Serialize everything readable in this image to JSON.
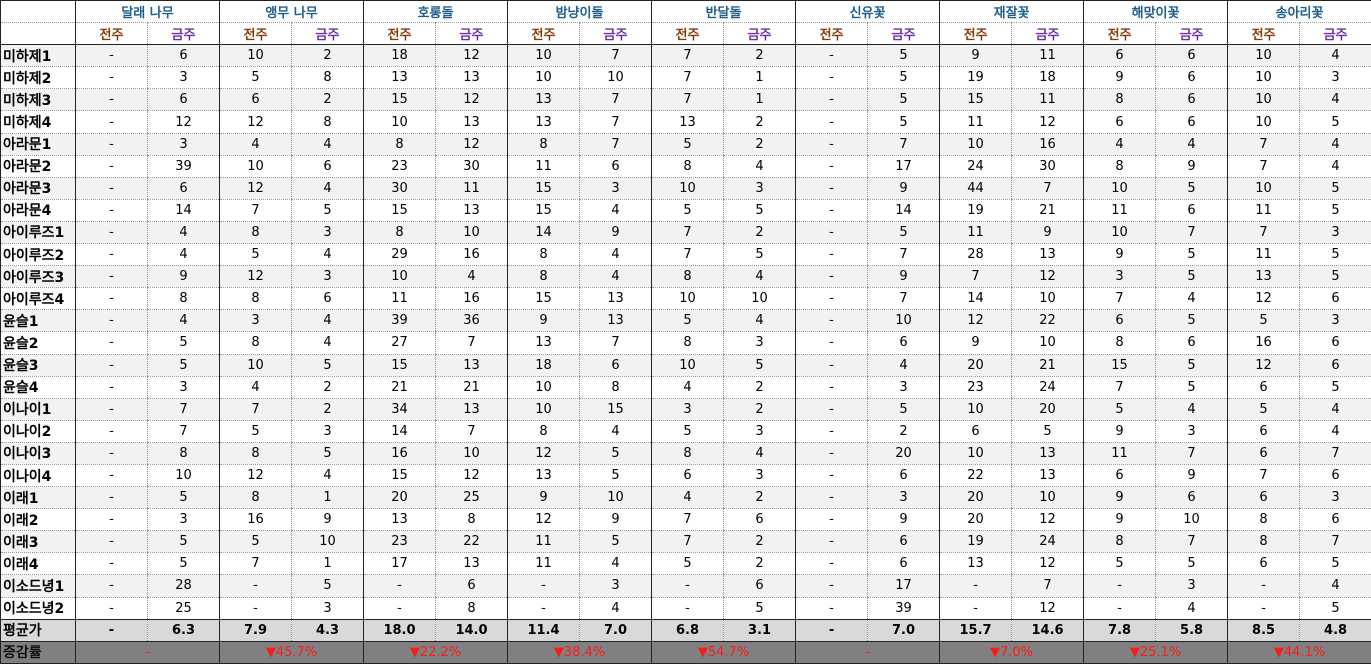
{
  "header": {
    "groups": [
      "달래 나무",
      "앵무 나무",
      "호롱돌",
      "밤냥이돌",
      "반달돌",
      "신유꽃",
      "재잘꽃",
      "해맞이꽃",
      "송아리꽃"
    ],
    "sub": [
      "전주",
      "금주"
    ]
  },
  "table": {
    "rows": [
      {
        "label": "미하제1",
        "cells": [
          "-",
          "6",
          "10",
          "2",
          "18",
          "12",
          "10",
          "7",
          "7",
          "2",
          "-",
          "5",
          "9",
          "11",
          "6",
          "6",
          "10",
          "4"
        ]
      },
      {
        "label": "미하제2",
        "cells": [
          "-",
          "3",
          "5",
          "8",
          "13",
          "13",
          "10",
          "10",
          "7",
          "1",
          "-",
          "5",
          "19",
          "18",
          "9",
          "6",
          "10",
          "3"
        ]
      },
      {
        "label": "미하제3",
        "cells": [
          "-",
          "6",
          "6",
          "2",
          "15",
          "12",
          "13",
          "7",
          "7",
          "1",
          "-",
          "5",
          "15",
          "11",
          "8",
          "6",
          "10",
          "4"
        ]
      },
      {
        "label": "미하제4",
        "cells": [
          "-",
          "12",
          "12",
          "8",
          "10",
          "13",
          "13",
          "7",
          "13",
          "2",
          "-",
          "5",
          "11",
          "12",
          "6",
          "6",
          "10",
          "5"
        ]
      },
      {
        "label": "아라문1",
        "cells": [
          "-",
          "3",
          "4",
          "4",
          "8",
          "12",
          "8",
          "7",
          "5",
          "2",
          "-",
          "7",
          "10",
          "16",
          "4",
          "4",
          "7",
          "4"
        ]
      },
      {
        "label": "아라문2",
        "cells": [
          "-",
          "39",
          "10",
          "6",
          "23",
          "30",
          "11",
          "6",
          "8",
          "4",
          "-",
          "17",
          "24",
          "30",
          "8",
          "9",
          "7",
          "4"
        ]
      },
      {
        "label": "아라문3",
        "cells": [
          "-",
          "6",
          "12",
          "4",
          "30",
          "11",
          "15",
          "3",
          "10",
          "3",
          "-",
          "9",
          "44",
          "7",
          "10",
          "5",
          "10",
          "5"
        ]
      },
      {
        "label": "아라문4",
        "cells": [
          "-",
          "14",
          "7",
          "5",
          "15",
          "13",
          "15",
          "4",
          "5",
          "5",
          "-",
          "14",
          "19",
          "21",
          "11",
          "6",
          "11",
          "5"
        ]
      },
      {
        "label": "아이루즈1",
        "cells": [
          "-",
          "4",
          "8",
          "3",
          "8",
          "10",
          "14",
          "9",
          "7",
          "2",
          "-",
          "5",
          "11",
          "9",
          "10",
          "7",
          "7",
          "3"
        ]
      },
      {
        "label": "아이루즈2",
        "cells": [
          "-",
          "4",
          "5",
          "4",
          "29",
          "16",
          "8",
          "4",
          "7",
          "5",
          "-",
          "7",
          "28",
          "13",
          "9",
          "5",
          "11",
          "5"
        ]
      },
      {
        "label": "아이루즈3",
        "cells": [
          "-",
          "9",
          "12",
          "3",
          "10",
          "4",
          "8",
          "4",
          "8",
          "4",
          "-",
          "9",
          "7",
          "12",
          "3",
          "5",
          "13",
          "5"
        ]
      },
      {
        "label": "아이루즈4",
        "cells": [
          "-",
          "8",
          "8",
          "6",
          "11",
          "16",
          "15",
          "13",
          "10",
          "10",
          "-",
          "7",
          "14",
          "10",
          "7",
          "4",
          "12",
          "6"
        ]
      },
      {
        "label": "윤슬1",
        "cells": [
          "-",
          "4",
          "3",
          "4",
          "39",
          "36",
          "9",
          "13",
          "5",
          "4",
          "-",
          "10",
          "12",
          "22",
          "6",
          "5",
          "5",
          "3"
        ]
      },
      {
        "label": "윤슬2",
        "cells": [
          "-",
          "5",
          "8",
          "4",
          "27",
          "7",
          "13",
          "7",
          "8",
          "3",
          "-",
          "6",
          "9",
          "10",
          "8",
          "6",
          "16",
          "6"
        ]
      },
      {
        "label": "윤슬3",
        "cells": [
          "-",
          "5",
          "10",
          "5",
          "15",
          "13",
          "18",
          "6",
          "10",
          "5",
          "-",
          "4",
          "20",
          "21",
          "15",
          "5",
          "12",
          "6"
        ]
      },
      {
        "label": "윤슬4",
        "cells": [
          "-",
          "3",
          "4",
          "2",
          "21",
          "21",
          "10",
          "8",
          "4",
          "2",
          "-",
          "3",
          "23",
          "24",
          "7",
          "5",
          "6",
          "5"
        ]
      },
      {
        "label": "이나이1",
        "cells": [
          "-",
          "7",
          "7",
          "2",
          "34",
          "13",
          "10",
          "15",
          "3",
          "2",
          "-",
          "5",
          "10",
          "20",
          "5",
          "4",
          "5",
          "4"
        ]
      },
      {
        "label": "이나이2",
        "cells": [
          "-",
          "7",
          "5",
          "3",
          "14",
          "7",
          "8",
          "4",
          "5",
          "3",
          "-",
          "2",
          "6",
          "5",
          "9",
          "3",
          "6",
          "4"
        ]
      },
      {
        "label": "이나이3",
        "cells": [
          "-",
          "8",
          "8",
          "5",
          "16",
          "10",
          "12",
          "5",
          "8",
          "4",
          "-",
          "20",
          "10",
          "13",
          "11",
          "7",
          "6",
          "7"
        ]
      },
      {
        "label": "이나이4",
        "cells": [
          "-",
          "10",
          "12",
          "4",
          "15",
          "12",
          "13",
          "5",
          "6",
          "3",
          "-",
          "6",
          "22",
          "13",
          "6",
          "9",
          "7",
          "6"
        ]
      },
      {
        "label": "이래1",
        "cells": [
          "-",
          "5",
          "8",
          "1",
          "20",
          "25",
          "9",
          "10",
          "4",
          "2",
          "-",
          "3",
          "20",
          "10",
          "9",
          "6",
          "6",
          "3"
        ]
      },
      {
        "label": "이래2",
        "cells": [
          "-",
          "3",
          "16",
          "9",
          "13",
          "8",
          "12",
          "9",
          "7",
          "6",
          "-",
          "9",
          "20",
          "12",
          "9",
          "10",
          "8",
          "6"
        ]
      },
      {
        "label": "이래3",
        "cells": [
          "-",
          "5",
          "5",
          "10",
          "23",
          "22",
          "11",
          "5",
          "7",
          "2",
          "-",
          "6",
          "19",
          "24",
          "8",
          "7",
          "8",
          "7"
        ]
      },
      {
        "label": "이래4",
        "cells": [
          "-",
          "5",
          "7",
          "1",
          "17",
          "13",
          "11",
          "4",
          "5",
          "2",
          "-",
          "6",
          "13",
          "12",
          "5",
          "5",
          "6",
          "5"
        ]
      },
      {
        "label": "이소드녕1",
        "cells": [
          "-",
          "28",
          "-",
          "5",
          "-",
          "6",
          "-",
          "3",
          "-",
          "6",
          "-",
          "17",
          "-",
          "7",
          "-",
          "3",
          "-",
          "4"
        ]
      },
      {
        "label": "이소드녕2",
        "cells": [
          "-",
          "25",
          "-",
          "3",
          "-",
          "8",
          "-",
          "4",
          "-",
          "5",
          "-",
          "39",
          "-",
          "12",
          "-",
          "4",
          "-",
          "5"
        ]
      }
    ]
  },
  "average": {
    "label": "평균가",
    "cells": [
      "-",
      "6.3",
      "7.9",
      "4.3",
      "18.0",
      "14.0",
      "11.4",
      "7.0",
      "6.8",
      "3.1",
      "-",
      "7.0",
      "15.7",
      "14.6",
      "7.8",
      "5.8",
      "8.5",
      "4.8"
    ]
  },
  "change": {
    "label": "증감률",
    "cells": [
      "-",
      "▼45.7%",
      "▼22.2%",
      "▼38.4%",
      "▼54.7%",
      "-",
      "▼7.0%",
      "▼25.1%",
      "▼44.1%"
    ]
  }
}
